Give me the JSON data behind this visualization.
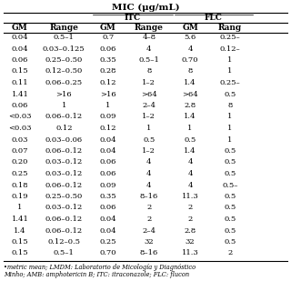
{
  "title": "MIC (μg/mL)",
  "headers": [
    "GM",
    "Range",
    "GM",
    "Range",
    "GM",
    "Rang"
  ],
  "rows": [
    [
      "0.04",
      "0.5–1",
      "0.7",
      "4–8",
      "5.6",
      "0.25–"
    ],
    [
      "0.04",
      "0.03–0.125",
      "0.06",
      "4",
      "4",
      "0.12–"
    ],
    [
      "0.06",
      "0.25–0.50",
      "0.35",
      "0.5–1",
      "0.70",
      "1"
    ],
    [
      "0.15",
      "0.12–0.50",
      "0.28",
      "8",
      "8",
      "1"
    ],
    [
      "0.11",
      "0.06–0.25",
      "0.12",
      "1–2",
      "1.4",
      "0.25–"
    ],
    [
      "1.41",
      ">16",
      ">16",
      ">64",
      ">64",
      "0.5"
    ],
    [
      "0.06",
      "1",
      "1",
      "2–4",
      "2.8",
      "8"
    ],
    [
      "<0.03",
      "0.06–0.12",
      "0.09",
      "1–2",
      "1.4",
      "1"
    ],
    [
      "<0.03",
      "0.12",
      "0.12",
      "1",
      "1",
      "1"
    ],
    [
      "0.03",
      "0.03–0.06",
      "0.04",
      "0.5",
      "0.5",
      "1"
    ],
    [
      "0.07",
      "0.06–0.12",
      "0.04",
      "1–2",
      "1.4",
      "0.5"
    ],
    [
      "0.20",
      "0.03–0.12",
      "0.06",
      "4",
      "4",
      "0.5"
    ],
    [
      "0.25",
      "0.03–0.12",
      "0.06",
      "4",
      "4",
      "0.5"
    ],
    [
      "0.18",
      "0.06–0.12",
      "0.09",
      "4",
      "4",
      "0.5–"
    ],
    [
      "0.19",
      "0.25–0.50",
      "0.35",
      "8–16",
      "11.3",
      "0.5"
    ],
    [
      "1",
      "0.03–0.12",
      "0.06",
      "2",
      "2",
      "0.5"
    ],
    [
      "1.41",
      "0.06–0.12",
      "0.04",
      "2",
      "2",
      "0.5"
    ],
    [
      "1.4",
      "0.06–0.12",
      "0.04",
      "2–4",
      "2.8",
      "0.5"
    ],
    [
      "0.15",
      "0.12–0.5",
      "0.25",
      "32",
      "32",
      "0.5"
    ],
    [
      "0.15",
      "0.5–1",
      "0.70",
      "8–16",
      "11.3",
      "2"
    ]
  ],
  "footnote_lines": [
    "•metric mean; LMDM: Laboratorio de Micología y Diagnóstico",
    "Minho; AMB: amphotericin B; ITC: itraconazole; FLC: flucon"
  ],
  "background": "#ffffff",
  "line_color": "#000000",
  "font_size": 6.0,
  "title_font_size": 7.5,
  "group_font_size": 6.5,
  "header_font_size": 6.5
}
